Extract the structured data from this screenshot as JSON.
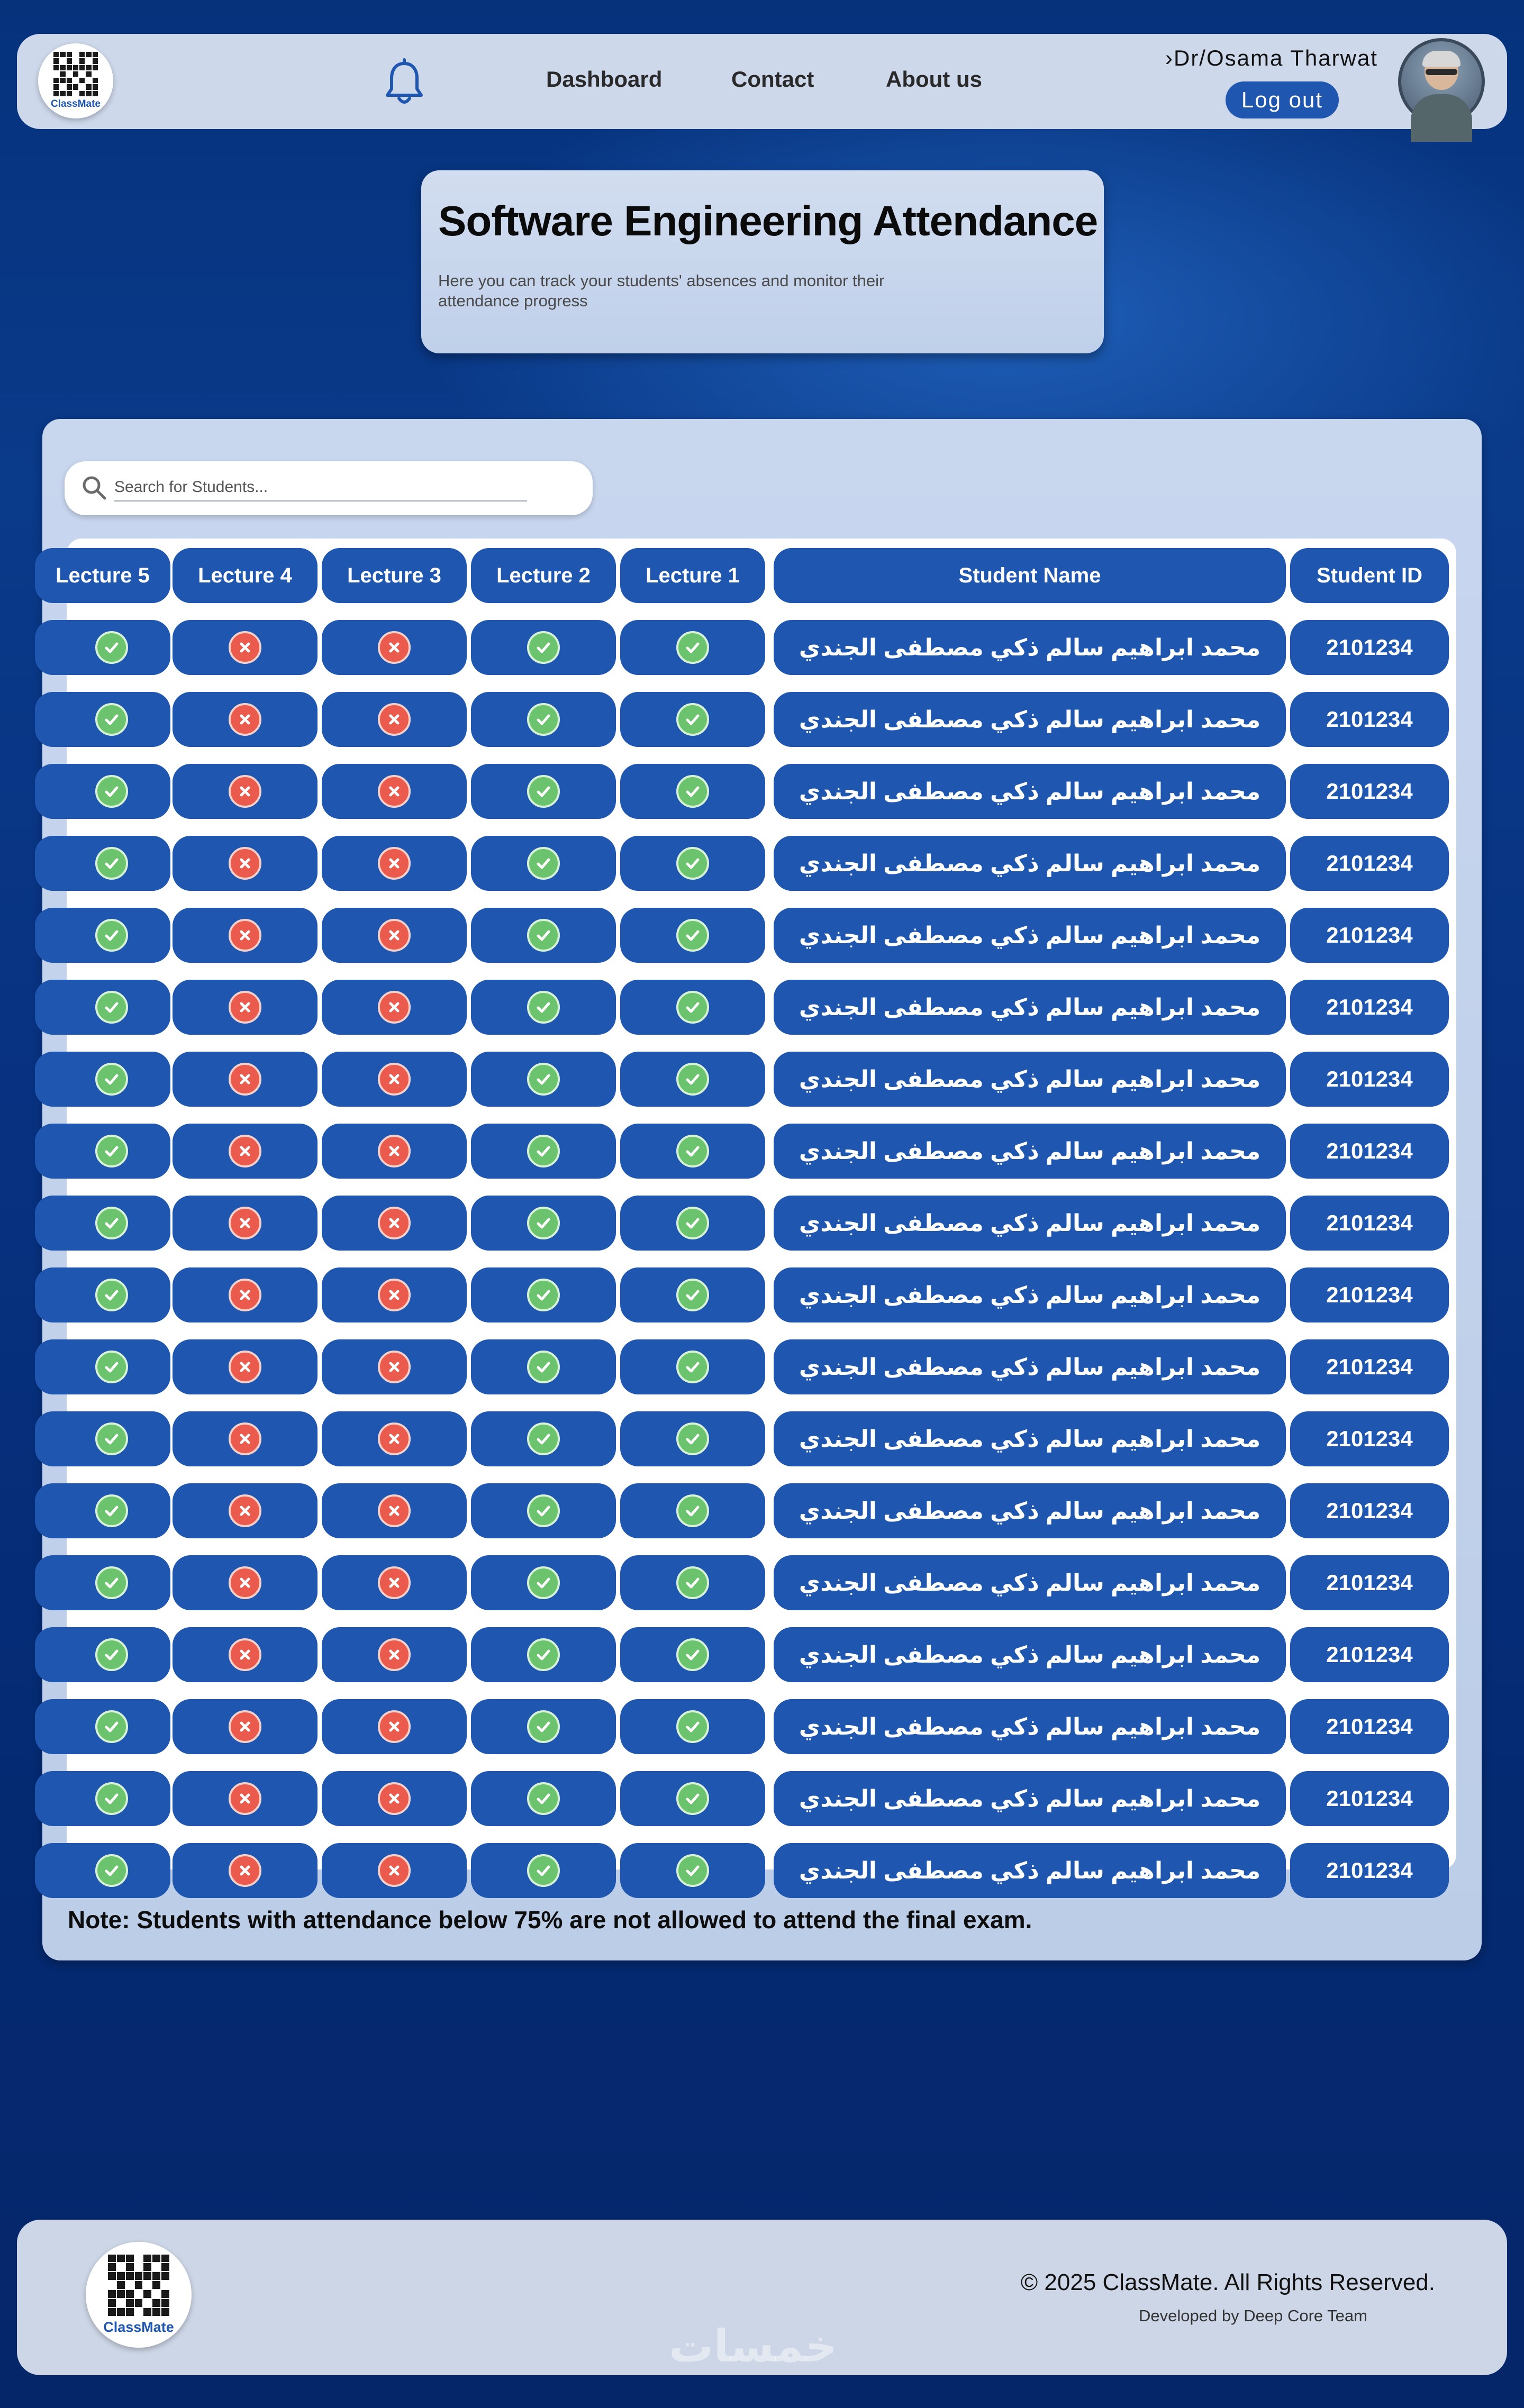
{
  "header": {
    "logo_label": "ClassMate",
    "nav": [
      "Dashboard",
      "Contact",
      "About us"
    ],
    "user_name": "›Dr/Osama Tharwat",
    "logout_label": "Log out"
  },
  "title_card": {
    "title": "Software Engineering Attendance",
    "subtitle": "Here you can track your students' absences and monitor their attendance progress"
  },
  "search": {
    "placeholder": "Search for Students..."
  },
  "table": {
    "columns": [
      "Lecture 5",
      "Lecture 4",
      "Lecture 3",
      "Lecture 2",
      "Lecture 1",
      "Student Name",
      "Student ID"
    ],
    "rows": [
      {
        "id": "2101234",
        "name": "محمد ابراهيم سالم ذكي مصطفى الجندي",
        "attendance": [
          true,
          true,
          false,
          false,
          true
        ]
      },
      {
        "id": "2101234",
        "name": "محمد ابراهيم سالم ذكي مصطفى الجندي",
        "attendance": [
          true,
          true,
          false,
          false,
          true
        ]
      },
      {
        "id": "2101234",
        "name": "محمد ابراهيم سالم ذكي مصطفى الجندي",
        "attendance": [
          true,
          true,
          false,
          false,
          true
        ]
      },
      {
        "id": "2101234",
        "name": "محمد ابراهيم سالم ذكي مصطفى الجندي",
        "attendance": [
          true,
          true,
          false,
          false,
          true
        ]
      },
      {
        "id": "2101234",
        "name": "محمد ابراهيم سالم ذكي مصطفى الجندي",
        "attendance": [
          true,
          true,
          false,
          false,
          true
        ]
      },
      {
        "id": "2101234",
        "name": "محمد ابراهيم سالم ذكي مصطفى الجندي",
        "attendance": [
          true,
          true,
          false,
          false,
          true
        ]
      },
      {
        "id": "2101234",
        "name": "محمد ابراهيم سالم ذكي مصطفى الجندي",
        "attendance": [
          true,
          true,
          false,
          false,
          true
        ]
      },
      {
        "id": "2101234",
        "name": "محمد ابراهيم سالم ذكي مصطفى الجندي",
        "attendance": [
          true,
          true,
          false,
          false,
          true
        ]
      },
      {
        "id": "2101234",
        "name": "محمد ابراهيم سالم ذكي مصطفى الجندي",
        "attendance": [
          true,
          true,
          false,
          false,
          true
        ]
      },
      {
        "id": "2101234",
        "name": "محمد ابراهيم سالم ذكي مصطفى الجندي",
        "attendance": [
          true,
          true,
          false,
          false,
          true
        ]
      },
      {
        "id": "2101234",
        "name": "محمد ابراهيم سالم ذكي مصطفى الجندي",
        "attendance": [
          true,
          true,
          false,
          false,
          true
        ]
      },
      {
        "id": "2101234",
        "name": "محمد ابراهيم سالم ذكي مصطفى الجندي",
        "attendance": [
          true,
          true,
          false,
          false,
          true
        ]
      },
      {
        "id": "2101234",
        "name": "محمد ابراهيم سالم ذكي مصطفى الجندي",
        "attendance": [
          true,
          true,
          false,
          false,
          true
        ]
      },
      {
        "id": "2101234",
        "name": "محمد ابراهيم سالم ذكي مصطفى الجندي",
        "attendance": [
          true,
          true,
          false,
          false,
          true
        ]
      },
      {
        "id": "2101234",
        "name": "محمد ابراهيم سالم ذكي مصطفى الجندي",
        "attendance": [
          true,
          true,
          false,
          false,
          true
        ]
      },
      {
        "id": "2101234",
        "name": "محمد ابراهيم سالم ذكي مصطفى الجندي",
        "attendance": [
          true,
          true,
          false,
          false,
          true
        ]
      },
      {
        "id": "2101234",
        "name": "محمد ابراهيم سالم ذكي مصطفى الجندي",
        "attendance": [
          true,
          true,
          false,
          false,
          true
        ]
      },
      {
        "id": "2101234",
        "name": "محمد ابراهيم سالم ذكي مصطفى الجندي",
        "attendance": [
          true,
          true,
          false,
          false,
          true
        ]
      }
    ]
  },
  "note": "Note: Students with attendance below 75% are not allowed to attend the final exam.",
  "footer": {
    "logo_label": "ClassMate",
    "copyright": "© 2025 ClassMate. All Rights Reserved.",
    "developer": "Developed by Deep Core Team",
    "watermark": "خمسات"
  },
  "colors": {
    "accent": "#1e56b0",
    "present": "#6cc36e",
    "absent": "#ea5a4d",
    "panel": "#c8d6ee"
  },
  "icons": {
    "present": "check-circle-icon",
    "absent": "x-circle-icon",
    "notifications": "bell-icon",
    "search": "search-icon"
  }
}
